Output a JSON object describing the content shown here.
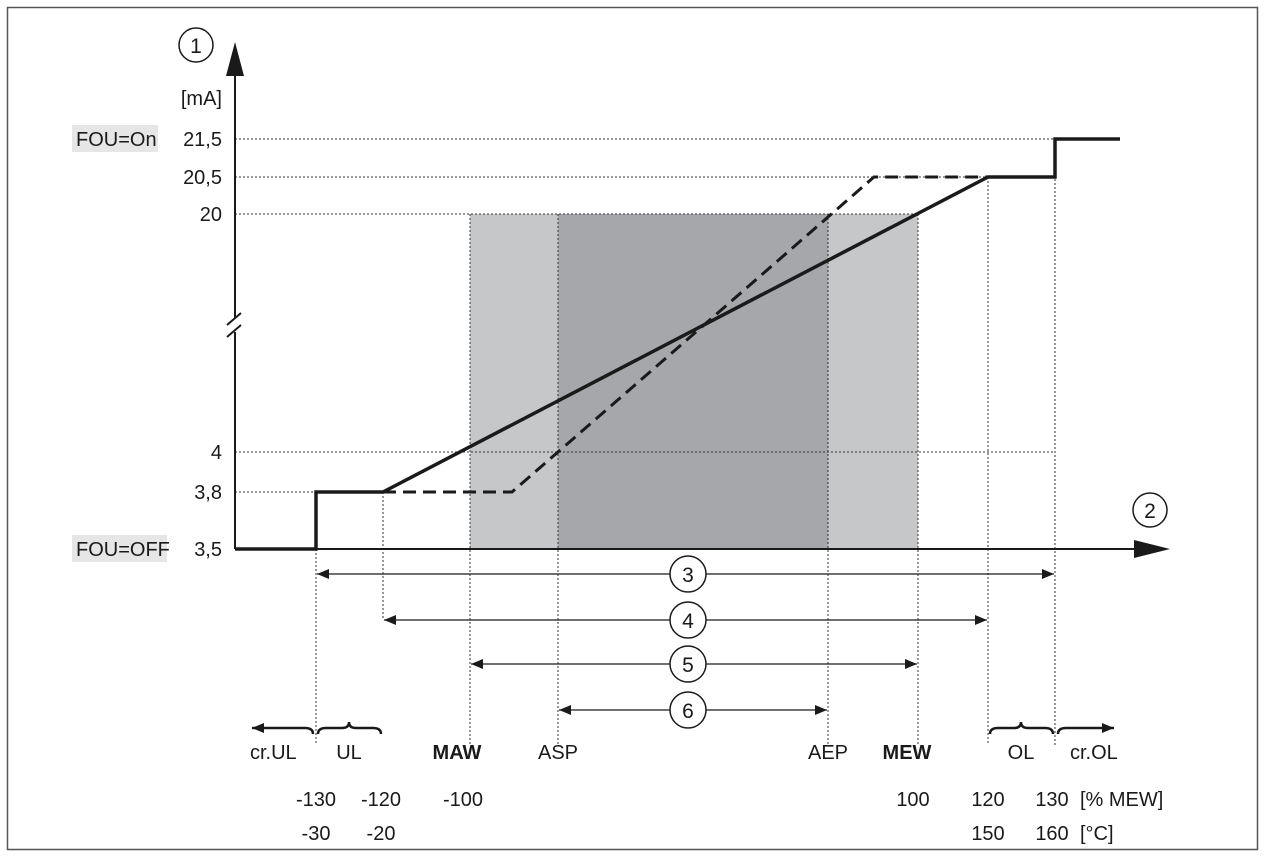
{
  "y_axis": {
    "marker": "1",
    "unit": "[mA]",
    "ticks": [
      "21,5",
      "20,5",
      "20",
      "4",
      "3,8",
      "3,5"
    ],
    "highlight_labels": {
      "on": "FOU=On",
      "off": "FOU=OFF"
    }
  },
  "x_axis": {
    "marker": "2",
    "pct_ticks": [
      "-130",
      "-120",
      "-100",
      "100",
      "120",
      "130"
    ],
    "pct_unit": "[% MEW]",
    "temp_ticks": [
      "-30",
      "-20",
      "150",
      "160"
    ],
    "temp_unit": "[°C]"
  },
  "points": {
    "MAW": "MAW",
    "ASP": "ASP",
    "AEP": "AEP",
    "MEW": "MEW"
  },
  "zones": {
    "cr_ul": "cr.UL",
    "ul": "UL",
    "ol": "OL",
    "cr_ol": "cr.OL"
  },
  "ranges": [
    "3",
    "4",
    "5",
    "6"
  ],
  "colors": {
    "light_band": "#c6c7c9",
    "dark_band": "#a6a7aa",
    "line": "#1a1a1a",
    "label_bg": "#e6e6e6",
    "frame": "#555555"
  }
}
